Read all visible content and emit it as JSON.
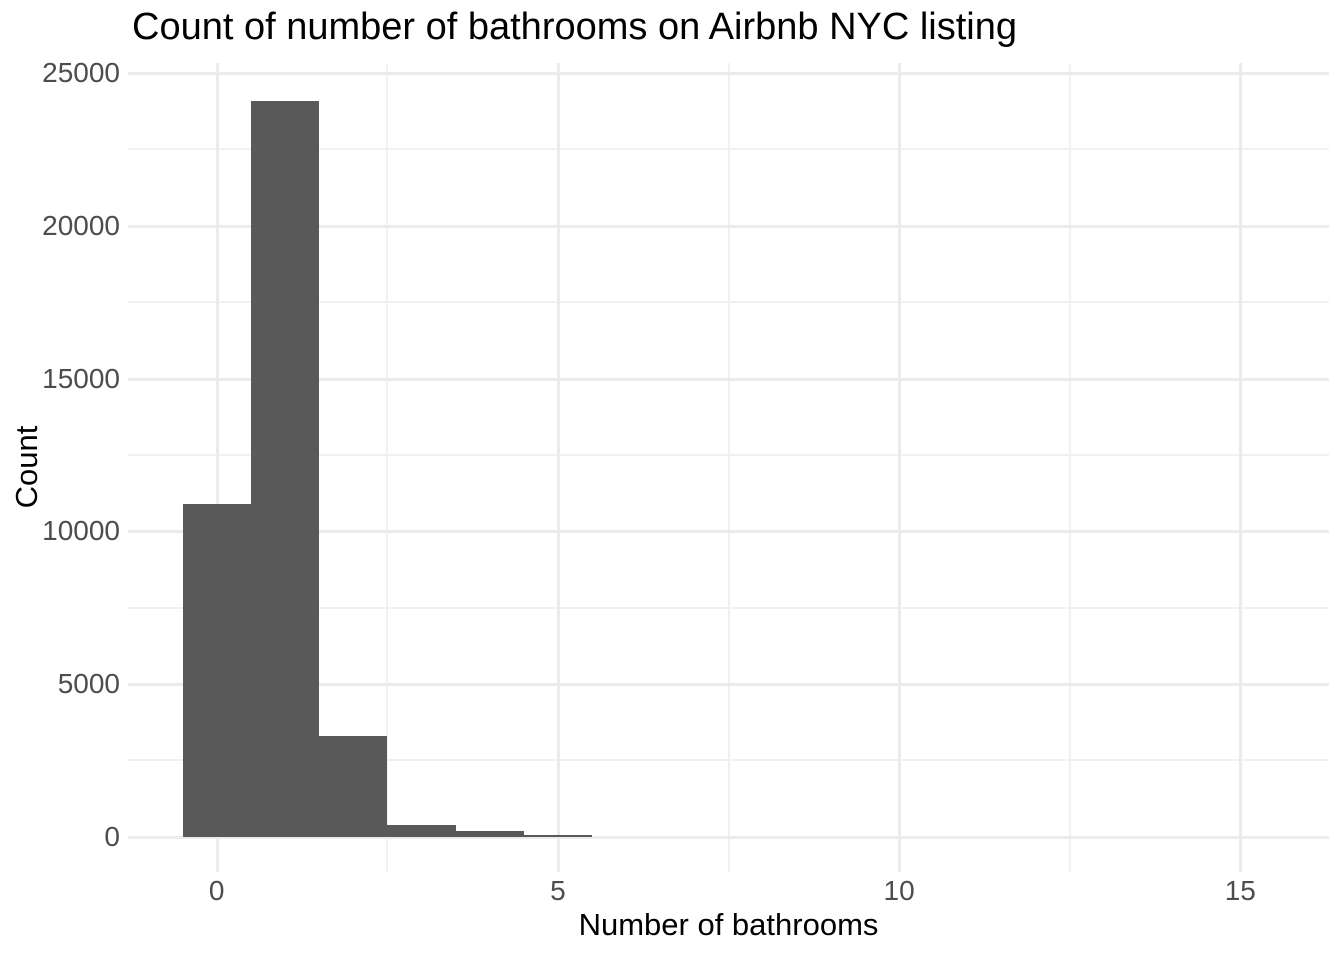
{
  "chart_data": {
    "type": "bar",
    "subtype": "histogram",
    "title": "Count of number of bathrooms on Airbnb NYC listing",
    "xlabel": "Number of bathrooms",
    "ylabel": "Count",
    "bins": {
      "centers": [
        0,
        1,
        2,
        3,
        4,
        5
      ],
      "width": 1,
      "counts": [
        10900,
        24100,
        3300,
        390,
        180,
        60
      ]
    },
    "x_axis": {
      "ticks": [
        0,
        5,
        10,
        15
      ],
      "tick_labels": [
        "0",
        "5",
        "10",
        "15"
      ],
      "minor_ticks": [
        2.5,
        7.5,
        12.5
      ],
      "range": [
        -1.3,
        16.3
      ]
    },
    "y_axis": {
      "ticks": [
        0,
        5000,
        10000,
        15000,
        20000,
        25000
      ],
      "tick_labels": [
        "0",
        "5000",
        "10000",
        "15000",
        "20000",
        "25000"
      ],
      "minor_ticks": [
        2500,
        7500,
        12500,
        17500,
        22500
      ],
      "range": [
        -1150,
        25330
      ]
    },
    "grid": true,
    "legend": false,
    "theme": "minimal-white",
    "colors": {
      "bar_fill": "#595959",
      "grid_major": "#EBEBEB",
      "grid_minor": "#F1F1F1",
      "tick_label_color": "#4D4D4D",
      "text_color": "#000000",
      "background": "#FFFFFF"
    }
  }
}
